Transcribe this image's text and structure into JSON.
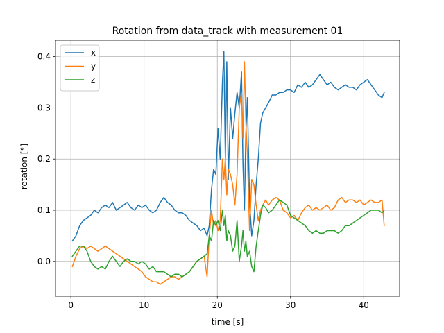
{
  "chart_data": {
    "type": "line",
    "title": "Rotation from data_track with measurement 01",
    "xlabel": "time [s]",
    "ylabel": "rotation [°]",
    "xlim": [
      -2.1,
      44.9
    ],
    "ylim": [
      -0.068,
      0.432
    ],
    "xticks": [
      0,
      10,
      20,
      30,
      40
    ],
    "yticks": [
      0.0,
      0.1,
      0.2,
      0.3,
      0.4
    ],
    "xtick_labels": [
      "0",
      "10",
      "20",
      "30",
      "40"
    ],
    "ytick_labels": [
      "0.0",
      "0.1",
      "0.2",
      "0.3",
      "0.4"
    ],
    "grid": true,
    "legend": "top-left",
    "series": [
      {
        "name": "x",
        "color": "#1f77b4",
        "x": [
          0.2,
          0.7,
          1.2,
          1.7,
          2.2,
          2.7,
          3.2,
          3.7,
          4.2,
          4.7,
          5.2,
          5.7,
          6.2,
          6.7,
          7.2,
          7.7,
          8.2,
          8.7,
          9.2,
          9.7,
          10.2,
          10.7,
          11.2,
          11.7,
          12.2,
          12.7,
          13.2,
          13.7,
          14.2,
          14.7,
          15.2,
          15.7,
          16.2,
          16.7,
          17.2,
          17.7,
          18.2,
          18.6,
          18.9,
          19.2,
          19.5,
          19.8,
          20.1,
          20.4,
          20.7,
          20.9,
          21.1,
          21.3,
          21.5,
          21.8,
          22.1,
          22.4,
          22.7,
          23.0,
          23.3,
          23.5,
          23.7,
          23.9,
          24.1,
          24.4,
          24.7,
          25.0,
          25.3,
          25.6,
          25.9,
          26.2,
          26.6,
          27.0,
          27.5,
          28.0,
          28.5,
          29.0,
          29.5,
          30.0,
          30.5,
          31.0,
          31.5,
          32.0,
          32.5,
          33.0,
          33.5,
          34.0,
          34.5,
          35.0,
          35.5,
          36.0,
          36.5,
          37.0,
          37.5,
          38.0,
          38.5,
          39.0,
          39.5,
          40.0,
          40.5,
          41.0,
          41.5,
          42.0,
          42.5,
          42.8
        ],
        "y": [
          0.04,
          0.05,
          0.07,
          0.08,
          0.085,
          0.09,
          0.1,
          0.095,
          0.105,
          0.11,
          0.105,
          0.115,
          0.1,
          0.105,
          0.11,
          0.115,
          0.105,
          0.1,
          0.11,
          0.105,
          0.11,
          0.1,
          0.095,
          0.1,
          0.115,
          0.125,
          0.115,
          0.11,
          0.1,
          0.095,
          0.095,
          0.09,
          0.08,
          0.075,
          0.07,
          0.06,
          0.065,
          0.05,
          0.07,
          0.14,
          0.18,
          0.17,
          0.26,
          0.2,
          0.35,
          0.41,
          0.2,
          0.39,
          0.16,
          0.3,
          0.24,
          0.29,
          0.33,
          0.3,
          0.37,
          0.19,
          0.1,
          0.25,
          0.32,
          0.12,
          0.05,
          0.08,
          0.15,
          0.2,
          0.27,
          0.29,
          0.3,
          0.31,
          0.325,
          0.325,
          0.33,
          0.33,
          0.335,
          0.335,
          0.33,
          0.345,
          0.34,
          0.35,
          0.34,
          0.345,
          0.355,
          0.365,
          0.355,
          0.345,
          0.35,
          0.34,
          0.335,
          0.34,
          0.345,
          0.34,
          0.34,
          0.335,
          0.345,
          0.35,
          0.355,
          0.345,
          0.335,
          0.325,
          0.32,
          0.33
        ]
      },
      {
        "name": "y",
        "color": "#ff7f0e",
        "x": [
          0.2,
          0.7,
          1.2,
          1.7,
          2.2,
          2.7,
          3.2,
          3.7,
          4.2,
          4.7,
          5.2,
          5.7,
          6.2,
          6.7,
          7.2,
          7.7,
          8.2,
          8.7,
          9.2,
          9.7,
          10.2,
          10.7,
          11.2,
          11.7,
          12.2,
          12.7,
          13.2,
          13.7,
          14.2,
          14.7,
          15.2,
          15.7,
          16.2,
          16.7,
          17.2,
          17.7,
          18.2,
          18.6,
          18.9,
          19.2,
          19.5,
          19.8,
          20.1,
          20.4,
          20.7,
          20.9,
          21.1,
          21.3,
          21.5,
          21.8,
          22.1,
          22.4,
          22.7,
          23.0,
          23.3,
          23.5,
          23.7,
          23.9,
          24.1,
          24.4,
          24.7,
          25.0,
          25.3,
          25.6,
          25.9,
          26.2,
          26.6,
          27.0,
          27.5,
          28.0,
          28.5,
          29.0,
          29.5,
          30.0,
          30.5,
          31.0,
          31.5,
          32.0,
          32.5,
          33.0,
          33.5,
          34.0,
          34.5,
          35.0,
          35.5,
          36.0,
          36.5,
          37.0,
          37.5,
          38.0,
          38.5,
          39.0,
          39.5,
          40.0,
          40.5,
          41.0,
          41.5,
          42.0,
          42.5,
          42.8
        ],
        "y": [
          -0.01,
          0.01,
          0.025,
          0.03,
          0.025,
          0.03,
          0.025,
          0.02,
          0.025,
          0.03,
          0.025,
          0.02,
          0.015,
          0.01,
          0.005,
          0.0,
          -0.005,
          -0.01,
          -0.015,
          -0.02,
          -0.03,
          -0.035,
          -0.04,
          -0.04,
          -0.045,
          -0.04,
          -0.035,
          -0.03,
          -0.03,
          -0.035,
          -0.03,
          -0.025,
          -0.02,
          -0.01,
          0.0,
          0.005,
          0.01,
          -0.03,
          0.05,
          0.1,
          0.07,
          0.08,
          0.06,
          0.08,
          0.2,
          0.16,
          0.2,
          0.13,
          0.18,
          0.17,
          0.15,
          0.11,
          0.17,
          0.3,
          0.33,
          0.24,
          0.39,
          0.27,
          0.21,
          0.06,
          0.16,
          0.15,
          0.11,
          0.08,
          0.1,
          0.11,
          0.12,
          0.11,
          0.12,
          0.125,
          0.12,
          0.1,
          0.095,
          0.085,
          0.09,
          0.08,
          0.095,
          0.105,
          0.11,
          0.1,
          0.105,
          0.1,
          0.105,
          0.11,
          0.1,
          0.105,
          0.12,
          0.125,
          0.115,
          0.12,
          0.12,
          0.115,
          0.12,
          0.11,
          0.115,
          0.12,
          0.115,
          0.115,
          0.12,
          0.07
        ]
      },
      {
        "name": "z",
        "color": "#2ca02c",
        "x": [
          0.2,
          0.7,
          1.2,
          1.7,
          2.2,
          2.7,
          3.2,
          3.7,
          4.2,
          4.7,
          5.2,
          5.7,
          6.2,
          6.7,
          7.2,
          7.7,
          8.2,
          8.7,
          9.2,
          9.7,
          10.2,
          10.7,
          11.2,
          11.7,
          12.2,
          12.7,
          13.2,
          13.7,
          14.2,
          14.7,
          15.2,
          15.7,
          16.2,
          16.7,
          17.2,
          17.7,
          18.2,
          18.6,
          18.9,
          19.2,
          19.5,
          19.8,
          20.1,
          20.4,
          20.7,
          20.9,
          21.1,
          21.3,
          21.5,
          21.8,
          22.1,
          22.4,
          22.7,
          23.0,
          23.3,
          23.5,
          23.7,
          23.9,
          24.1,
          24.4,
          24.7,
          25.0,
          25.3,
          25.6,
          25.9,
          26.2,
          26.6,
          27.0,
          27.5,
          28.0,
          28.5,
          29.0,
          29.5,
          30.0,
          30.5,
          31.0,
          31.5,
          32.0,
          32.5,
          33.0,
          33.5,
          34.0,
          34.5,
          35.0,
          35.5,
          36.0,
          36.5,
          37.0,
          37.5,
          38.0,
          38.5,
          39.0,
          39.5,
          40.0,
          40.5,
          41.0,
          41.5,
          42.0,
          42.5,
          42.8
        ],
        "y": [
          0.01,
          0.02,
          0.03,
          0.03,
          0.02,
          0.0,
          -0.01,
          -0.015,
          -0.01,
          -0.015,
          0.0,
          0.01,
          0.0,
          -0.01,
          0.0,
          0.005,
          0.0,
          0.0,
          -0.005,
          0.0,
          -0.005,
          -0.015,
          -0.01,
          -0.02,
          -0.02,
          -0.02,
          -0.025,
          -0.03,
          -0.025,
          -0.025,
          -0.03,
          -0.025,
          -0.02,
          -0.01,
          0.0,
          0.005,
          0.01,
          0.015,
          0.05,
          0.04,
          0.08,
          0.07,
          0.08,
          0.06,
          0.1,
          0.07,
          0.09,
          0.04,
          0.06,
          0.05,
          0.02,
          0.03,
          0.08,
          0.0,
          0.03,
          0.06,
          0.02,
          0.04,
          0.01,
          0.02,
          -0.01,
          -0.02,
          0.03,
          0.06,
          0.09,
          0.11,
          0.105,
          0.095,
          0.1,
          0.11,
          0.12,
          0.115,
          0.11,
          0.09,
          0.085,
          0.08,
          0.075,
          0.07,
          0.06,
          0.055,
          0.06,
          0.055,
          0.055,
          0.06,
          0.06,
          0.06,
          0.055,
          0.06,
          0.07,
          0.07,
          0.075,
          0.08,
          0.085,
          0.09,
          0.095,
          0.1,
          0.1,
          0.1,
          0.095,
          0.1
        ]
      }
    ]
  }
}
